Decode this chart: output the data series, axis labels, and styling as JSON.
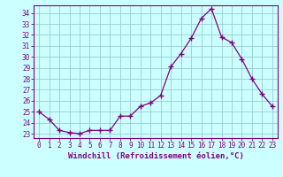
{
  "x": [
    0,
    1,
    2,
    3,
    4,
    5,
    6,
    7,
    8,
    9,
    10,
    11,
    12,
    13,
    14,
    15,
    16,
    17,
    18,
    19,
    20,
    21,
    22,
    23
  ],
  "y": [
    25.0,
    24.3,
    23.3,
    23.1,
    23.0,
    23.3,
    23.3,
    23.3,
    24.6,
    24.6,
    25.5,
    25.8,
    26.5,
    29.1,
    30.3,
    31.7,
    33.5,
    34.4,
    31.8,
    31.3,
    29.8,
    28.0,
    26.6,
    25.5
  ],
  "line_color": "#800080",
  "marker": "+",
  "marker_size": 4,
  "bg_color": "#ccffff",
  "grid_color": "#99cccc",
  "xlabel": "Windchill (Refroidissement éolien,°C)",
  "ylim": [
    22.6,
    34.7
  ],
  "yticks": [
    23,
    24,
    25,
    26,
    27,
    28,
    29,
    30,
    31,
    32,
    33,
    34
  ],
  "xticks": [
    0,
    1,
    2,
    3,
    4,
    5,
    6,
    7,
    8,
    9,
    10,
    11,
    12,
    13,
    14,
    15,
    16,
    17,
    18,
    19,
    20,
    21,
    22,
    23
  ],
  "xlabel_fontsize": 6.5,
  "tick_fontsize": 5.5,
  "axis_color": "#800080",
  "spine_color": "#800080",
  "linewidth": 0.9
}
